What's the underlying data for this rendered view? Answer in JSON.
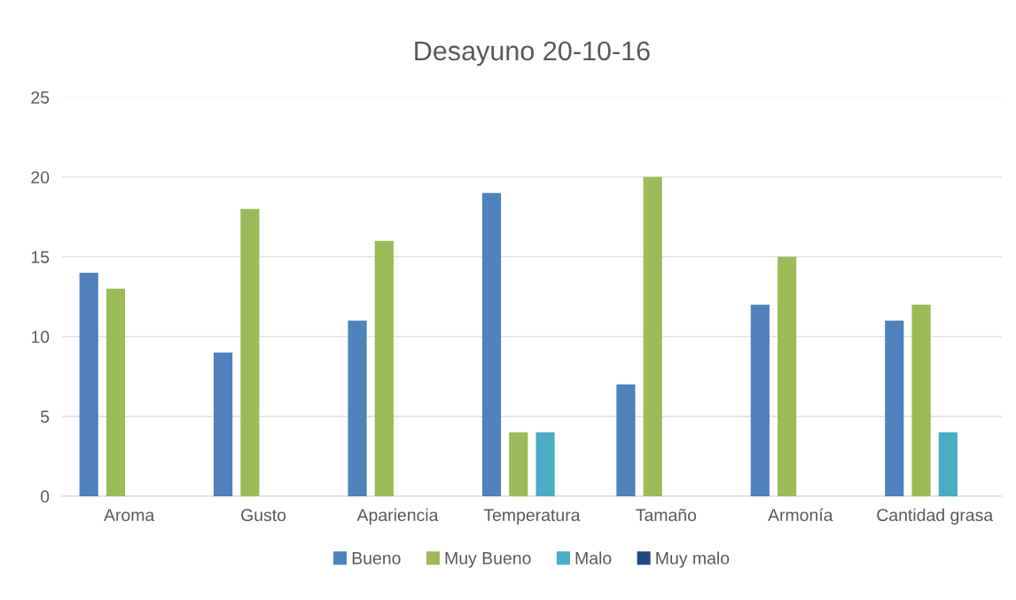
{
  "chart_data": {
    "type": "bar",
    "title": "Desayuno 20-10-16",
    "categories": [
      "Aroma",
      "Gusto",
      "Apariencia",
      "Temperatura",
      "Tamaño",
      "Armonía",
      "Cantidad grasa"
    ],
    "series": [
      {
        "name": "Bueno",
        "color": "#4f81bd",
        "values": [
          14,
          9,
          11,
          19,
          7,
          12,
          11
        ]
      },
      {
        "name": "Muy Bueno",
        "color": "#9bbb59",
        "values": [
          13,
          18,
          16,
          4,
          20,
          15,
          12
        ]
      },
      {
        "name": "Malo",
        "color": "#4bacc6",
        "values": [
          0,
          0,
          0,
          4,
          0,
          0,
          4
        ]
      },
      {
        "name": "Muy malo",
        "color": "#1f497d",
        "values": [
          0,
          0,
          0,
          0,
          0,
          0,
          0
        ]
      }
    ],
    "ylim": [
      0,
      25
    ],
    "yticks": [
      0,
      5,
      10,
      15,
      20,
      25
    ],
    "grid": "y",
    "legend": "bottom"
  }
}
